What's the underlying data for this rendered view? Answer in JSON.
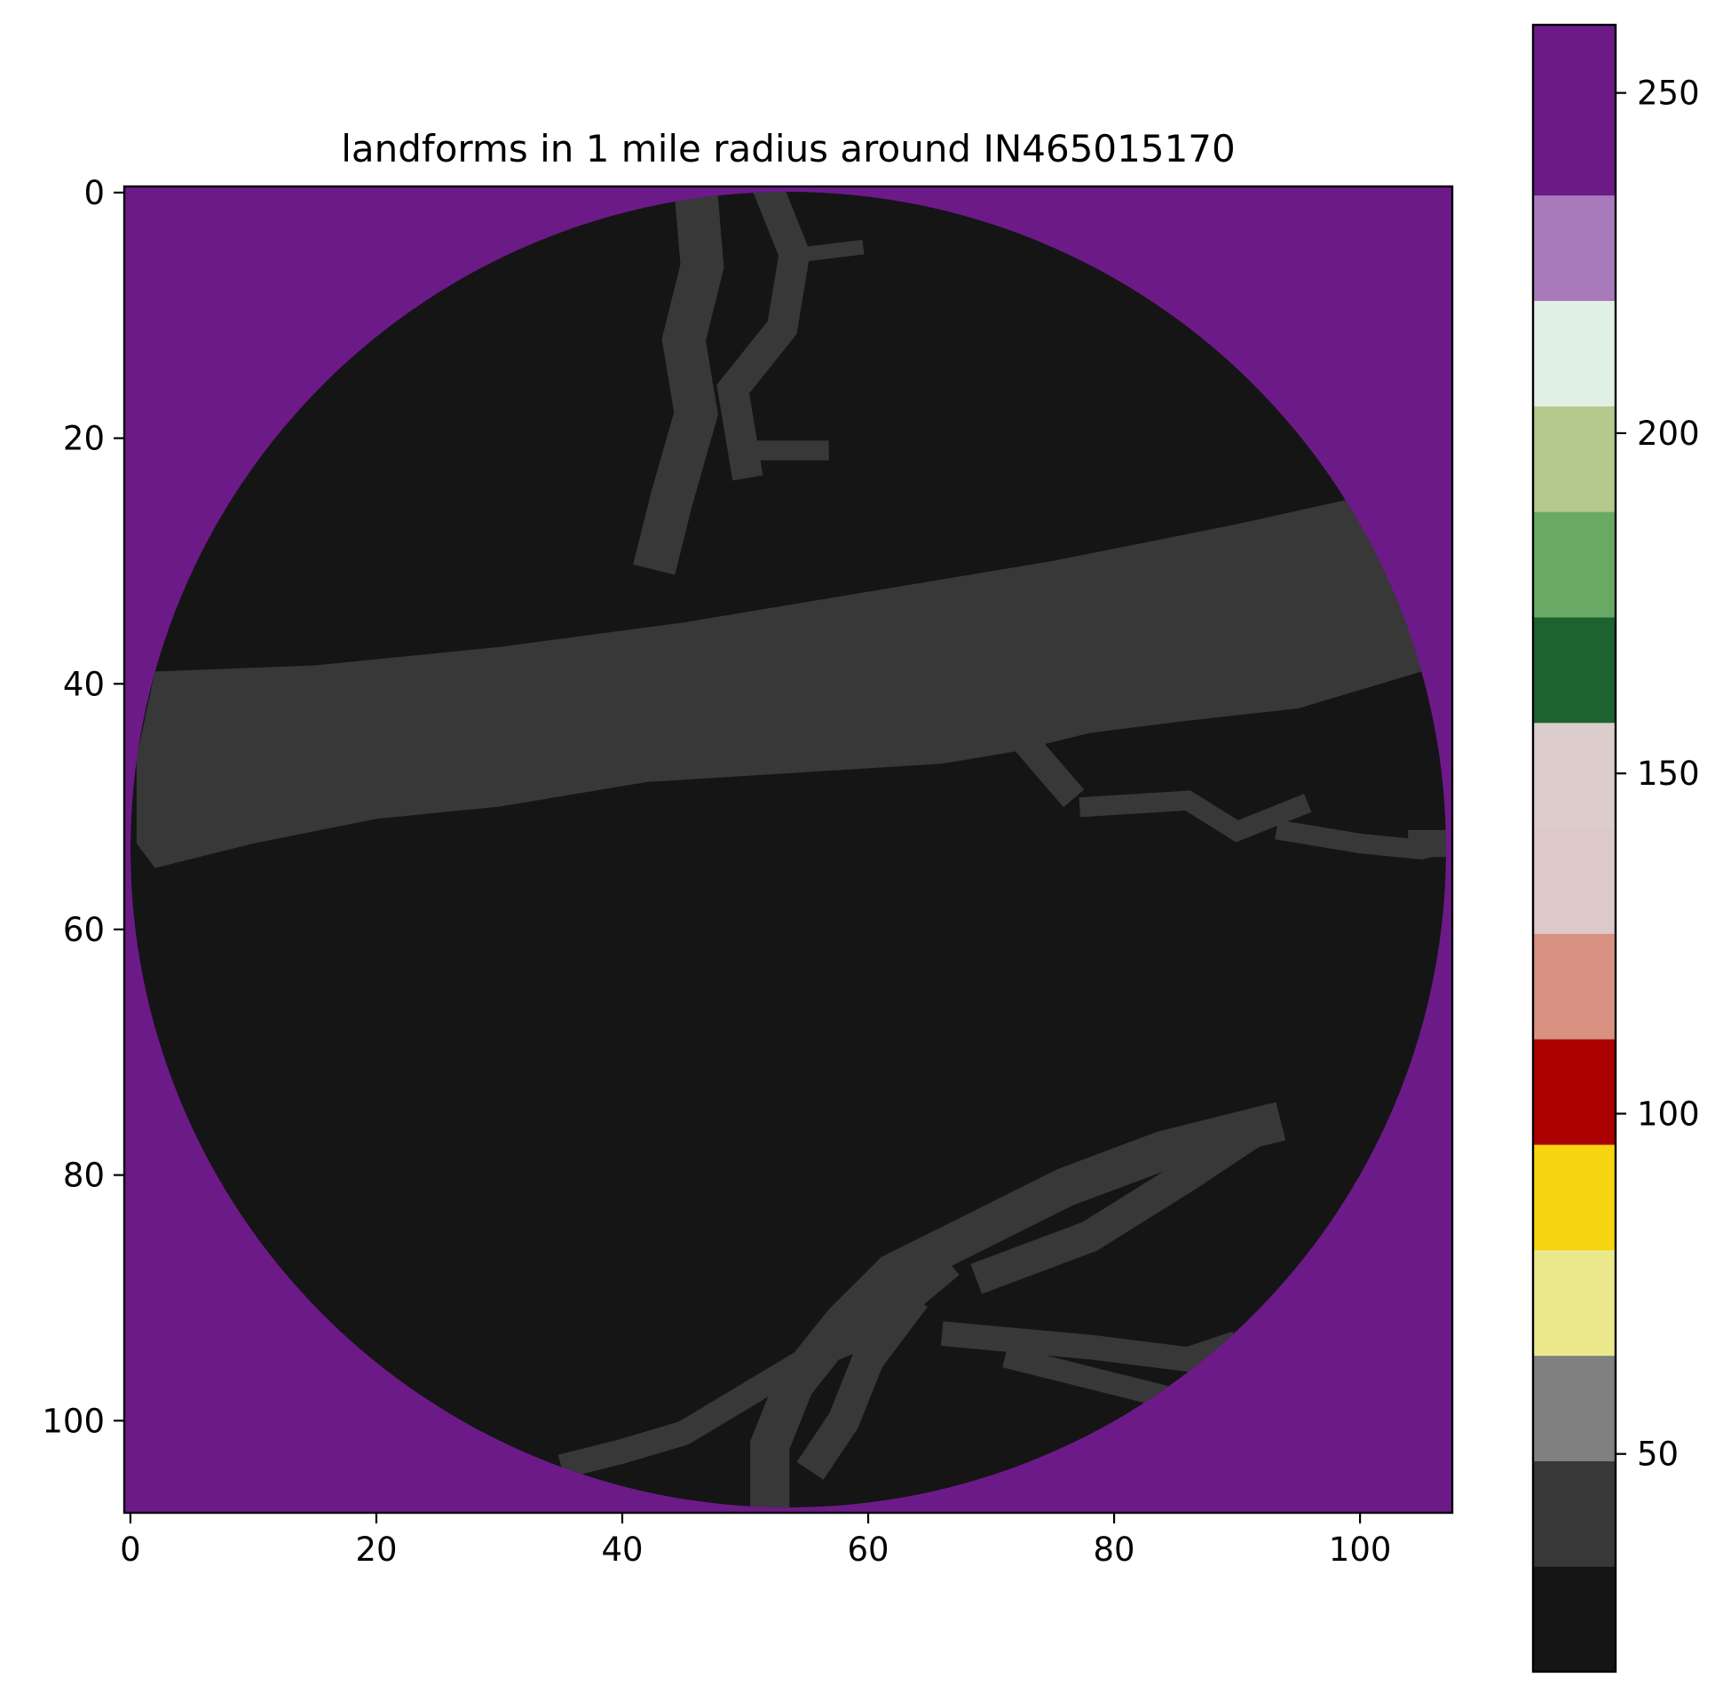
{
  "chart_data": {
    "type": "heatmap",
    "title": "landforms in 1 mile radius around IN465015170",
    "xlabel": "",
    "ylabel": "",
    "xlim": [
      -0.5,
      107.5
    ],
    "ylim": [
      107.5,
      -0.5
    ],
    "x_ticks": [
      0,
      20,
      40,
      60,
      80,
      100
    ],
    "y_ticks": [
      0,
      20,
      40,
      60,
      80,
      100
    ],
    "grid": false,
    "mask": {
      "description_value": 255,
      "center": [
        53.5,
        53.5
      ],
      "radius": 53.5
    },
    "regions": [
      {
        "name": "background outside radius",
        "value": 255,
        "color": "#6d1a89"
      },
      {
        "name": "dominant landform",
        "value": 24,
        "color": "#151515"
      },
      {
        "name": "secondary landform (band and channels)",
        "value": 40,
        "color": "#383838"
      }
    ],
    "band_polygon": [
      [
        2,
        39
      ],
      [
        15,
        38.5
      ],
      [
        30,
        37
      ],
      [
        45,
        35
      ],
      [
        60,
        32.5
      ],
      [
        75,
        30
      ],
      [
        90,
        27
      ],
      [
        99,
        25
      ],
      [
        101,
        27
      ],
      [
        103,
        31
      ],
      [
        104.5,
        35
      ],
      [
        105,
        39
      ],
      [
        95,
        42
      ],
      [
        86,
        43
      ],
      [
        78,
        44
      ],
      [
        72,
        45.5
      ],
      [
        66,
        46.5
      ],
      [
        58,
        47
      ],
      [
        50,
        47.5
      ],
      [
        42,
        48
      ],
      [
        30,
        50
      ],
      [
        20,
        51
      ],
      [
        10,
        53
      ],
      [
        2,
        55
      ],
      [
        0.5,
        53
      ],
      [
        0.5,
        46
      ]
    ],
    "channels": [
      {
        "points": [
          [
            46,
            0
          ],
          [
            46.5,
            6
          ],
          [
            45,
            12
          ],
          [
            46,
            18
          ],
          [
            44,
            25
          ],
          [
            43,
            29
          ]
        ],
        "width": 3.5
      },
      {
        "points": [
          [
            52,
            0
          ],
          [
            54,
            5
          ],
          [
            53,
            11
          ],
          [
            49,
            16
          ],
          [
            50,
            22
          ]
        ],
        "width": 2.5
      },
      {
        "points": [
          [
            50,
            21
          ],
          [
            56,
            21
          ]
        ],
        "width": 1.6
      },
      {
        "points": [
          [
            55,
            5
          ],
          [
            59,
            4.5
          ]
        ],
        "width": 1.2
      },
      {
        "points": [
          [
            73,
            45
          ],
          [
            76,
            48.5
          ]
        ],
        "width": 2.2
      },
      {
        "points": [
          [
            78,
            50
          ],
          [
            86,
            49.5
          ],
          [
            90,
            52
          ],
          [
            95,
            50
          ]
        ],
        "width": 1.6
      },
      {
        "points": [
          [
            94,
            52
          ],
          [
            100,
            53
          ],
          [
            105,
            53.5
          ],
          [
            107,
            53
          ]
        ],
        "width": 1.6
      },
      {
        "points": [
          [
            105,
            53
          ],
          [
            107.3,
            53
          ]
        ],
        "width": 2.2
      },
      {
        "points": [
          [
            92,
            76
          ],
          [
            84,
            78
          ],
          [
            76,
            81
          ],
          [
            68,
            85
          ],
          [
            62,
            88
          ],
          [
            58,
            92
          ],
          [
            54,
            97
          ],
          [
            52,
            102
          ],
          [
            52,
            107
          ]
        ],
        "width": 3.2
      },
      {
        "points": [
          [
            92,
            76
          ],
          [
            86,
            80
          ],
          [
            78,
            85
          ],
          [
            70,
            88
          ]
        ],
        "width": 2.6
      },
      {
        "points": [
          [
            66,
            88
          ],
          [
            60,
            93
          ],
          [
            55,
            95
          ],
          [
            50,
            98
          ],
          [
            45,
            101
          ],
          [
            40,
            102.5
          ],
          [
            36,
            103.5
          ]
        ],
        "width": 2.0
      },
      {
        "points": [
          [
            67,
            93
          ],
          [
            78,
            94
          ],
          [
            86,
            95
          ],
          [
            89,
            94
          ]
        ],
        "width": 2.0
      },
      {
        "points": [
          [
            63,
            91
          ],
          [
            60,
            95
          ],
          [
            58,
            100
          ],
          [
            56,
            103
          ]
        ],
        "width": 2.6
      },
      {
        "points": [
          [
            72,
            95
          ],
          [
            80,
            97
          ],
          [
            84,
            98
          ]
        ],
        "width": 1.8
      }
    ],
    "colorbar": {
      "vmin": 18,
      "vmax": 260,
      "ticks": [
        50,
        100,
        150,
        200,
        250
      ],
      "bins": [
        {
          "from": 18,
          "to": 33.5,
          "color": "#151515"
        },
        {
          "from": 33.5,
          "to": 49,
          "color": "#383838"
        },
        {
          "from": 49,
          "to": 64.5,
          "color": "#808080"
        },
        {
          "from": 64.5,
          "to": 80,
          "color": "#ebe98c"
        },
        {
          "from": 80,
          "to": 95.5,
          "color": "#f6d412"
        },
        {
          "from": 95.5,
          "to": 111,
          "color": "#ab0000"
        },
        {
          "from": 111,
          "to": 126.5,
          "color": "#d99282"
        },
        {
          "from": 126.5,
          "to": 142,
          "color": "#ddc9c9"
        },
        {
          "from": 142,
          "to": 157.5,
          "color": "#ddcccc"
        },
        {
          "from": 157.5,
          "to": 173,
          "color": "#1c6330"
        },
        {
          "from": 173,
          "to": 188.5,
          "color": "#68aa63"
        },
        {
          "from": 188.5,
          "to": 204,
          "color": "#b5c98e"
        },
        {
          "from": 204,
          "to": 219.5,
          "color": "#e1f0e5"
        },
        {
          "from": 219.5,
          "to": 235,
          "color": "#a97abb"
        },
        {
          "from": 235,
          "to": 260,
          "color": "#6d1a89"
        }
      ]
    }
  }
}
